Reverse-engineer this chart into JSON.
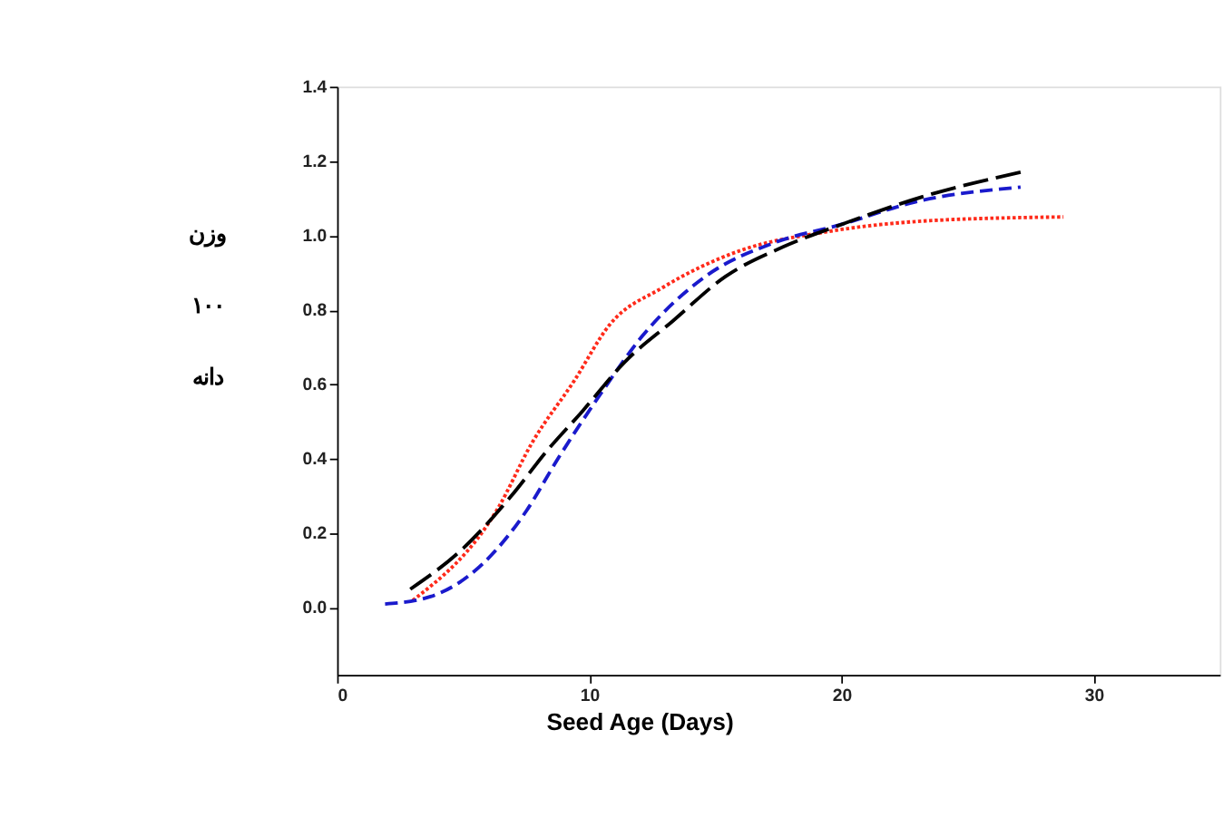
{
  "chart_data": {
    "type": "line",
    "xlabel": "Seed Age (Days)",
    "ylabel": "وزن ۱۰۰ دانه",
    "xlim": [
      0,
      35
    ],
    "xticks": [
      0,
      10,
      20,
      30
    ],
    "ylim": [
      -0.18,
      1.4
    ],
    "yticks": [
      {
        "value": 0,
        "label": "0.0"
      },
      {
        "value": 0.2,
        "label": "0.2"
      },
      {
        "value": 0.4,
        "label": "0.4"
      },
      {
        "value": 0.6,
        "label": "0.6"
      },
      {
        "value": 0.8,
        "label": "0.8"
      },
      {
        "value": 1.0,
        "label": "1.0"
      },
      {
        "value": 1.2,
        "label": "1.2"
      },
      {
        "value": 1.4,
        "label": "1.4"
      }
    ],
    "grid": false,
    "marker": "none",
    "series": [
      {
        "color": "#ff2a1a",
        "line_style": "dotted",
        "x": [
          3,
          6.4,
          7.7,
          9.4,
          10.8,
          12.9,
          16.0,
          19.4,
          23.5,
          28.8
        ],
        "values": [
          0.02,
          0.27,
          0.44,
          0.61,
          0.76,
          0.86,
          0.96,
          1.01,
          1.04,
          1.05
        ]
      },
      {
        "color": "#1a1acc",
        "line_style": "dashed",
        "x": [
          1.9,
          3.7,
          5.8,
          7.5,
          8.75,
          10.4,
          12.1,
          14.6,
          17.3,
          20.0,
          22.9,
          27.1
        ],
        "values": [
          0.01,
          0.03,
          0.12,
          0.26,
          0.4,
          0.57,
          0.73,
          0.89,
          0.98,
          1.03,
          1.09,
          1.13
        ]
      },
      {
        "color": "#000000",
        "line_style": "longdash",
        "x": [
          2.9,
          5.0,
          6.9,
          8.3,
          9.75,
          11.4,
          13.3,
          15.4,
          17.7,
          20.0,
          23.5,
          27.1
        ],
        "values": [
          0.05,
          0.16,
          0.3,
          0.42,
          0.53,
          0.66,
          0.77,
          0.89,
          0.97,
          1.03,
          1.11,
          1.17
        ]
      }
    ]
  }
}
